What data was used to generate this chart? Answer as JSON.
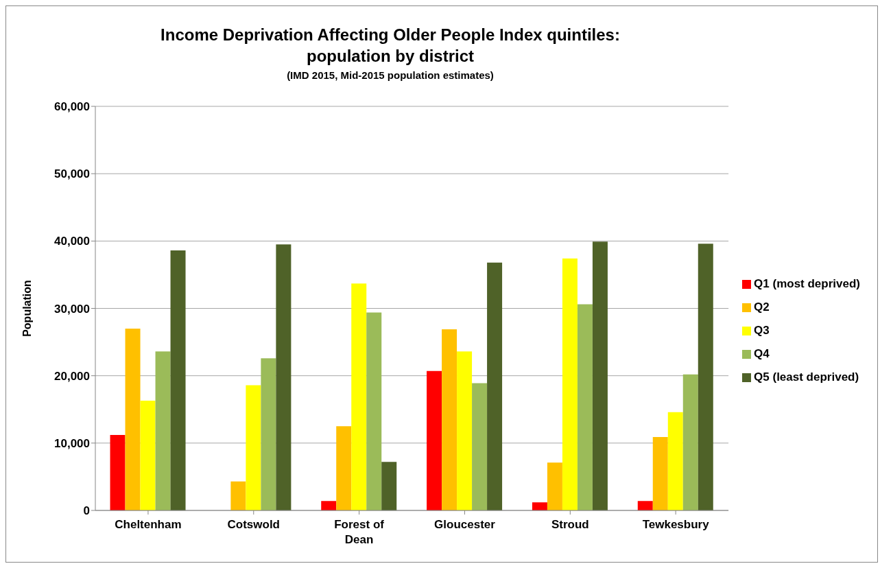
{
  "chart_data": {
    "type": "bar",
    "title": "Income Deprivation Affecting Older People Index quintiles:\npopulation by district",
    "subtitle": "(IMD 2015, Mid-2015 population estimates)",
    "ylabel": "Population",
    "categories": [
      "Cheltenham",
      "Cotswold",
      "Forest of Dean",
      "Gloucester",
      "Stroud",
      "Tewkesbury"
    ],
    "series": [
      {
        "name": "Q1 (most deprived)",
        "color": "#ff0000",
        "values": [
          11200,
          0,
          1400,
          20700,
          1200,
          1400
        ]
      },
      {
        "name": "Q2",
        "color": "#ffc000",
        "values": [
          27000,
          4300,
          12500,
          26900,
          7100,
          10900
        ]
      },
      {
        "name": "Q3",
        "color": "#ffff00",
        "values": [
          16300,
          18600,
          33700,
          23600,
          37400,
          14600
        ]
      },
      {
        "name": "Q4",
        "color": "#9bbb59",
        "values": [
          23600,
          22600,
          29400,
          18900,
          30600,
          20200
        ]
      },
      {
        "name": "Q5  (least deprived)",
        "color": "#4f6228",
        "values": [
          38600,
          39500,
          7200,
          36800,
          39900,
          39600
        ]
      }
    ],
    "ylim": [
      0,
      60000
    ],
    "yticks": [
      {
        "value": 0,
        "label": "0"
      },
      {
        "value": 10000,
        "label": "10,000"
      },
      {
        "value": 20000,
        "label": "20,000"
      },
      {
        "value": 30000,
        "label": "30,000"
      },
      {
        "value": 40000,
        "label": "40,000"
      },
      {
        "value": 50000,
        "label": "50,000"
      },
      {
        "value": 60000,
        "label": "60,000"
      }
    ],
    "grid": "y",
    "legend": "right"
  }
}
